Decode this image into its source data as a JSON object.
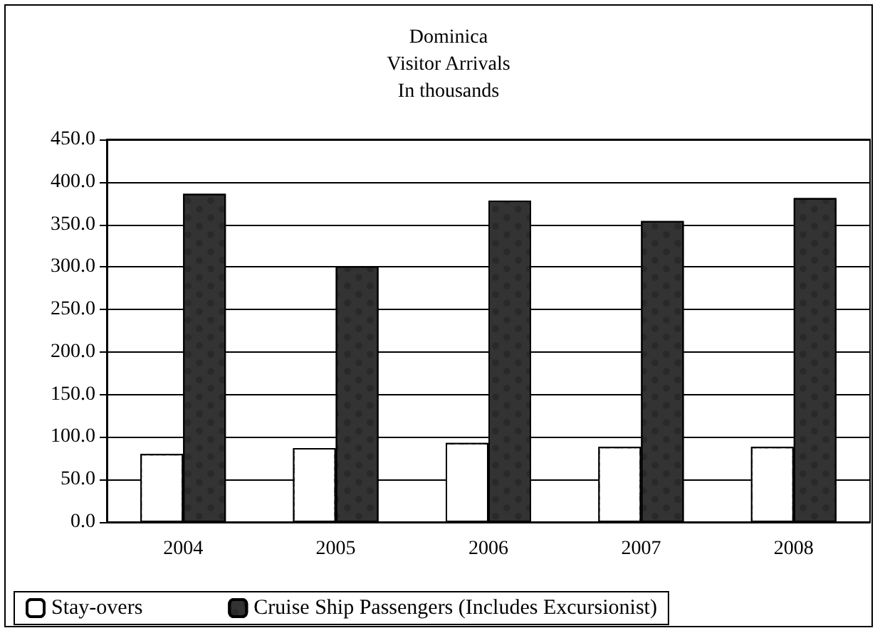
{
  "chart_data": {
    "type": "bar",
    "title": "Dominica\nVisitor Arrivals\nIn thousands",
    "categories": [
      "2004",
      "2005",
      "2006",
      "2007",
      "2008"
    ],
    "series": [
      {
        "name": "Stay-overs",
        "color": "#ffffff",
        "values": [
          80,
          87,
          93,
          88.5,
          88.5
        ]
      },
      {
        "name": "Cruise Ship Passengers (Includes Excursionist)",
        "color": "#333333",
        "values": [
          386,
          301,
          378,
          354,
          381
        ]
      }
    ],
    "ylim": [
      0,
      450
    ],
    "yticks": [
      {
        "value": 0,
        "label": "0.0"
      },
      {
        "value": 50,
        "label": "50.0"
      },
      {
        "value": 100,
        "label": "100.0"
      },
      {
        "value": 150,
        "label": "150.0"
      },
      {
        "value": 200,
        "label": "200.0"
      },
      {
        "value": 250,
        "label": "250.0"
      },
      {
        "value": 300,
        "label": "300.0"
      },
      {
        "value": 350,
        "label": "350.0"
      },
      {
        "value": 400,
        "label": "400.0"
      },
      {
        "value": 450,
        "label": "450.0"
      }
    ],
    "grid": "y",
    "legend": "bottom left"
  }
}
